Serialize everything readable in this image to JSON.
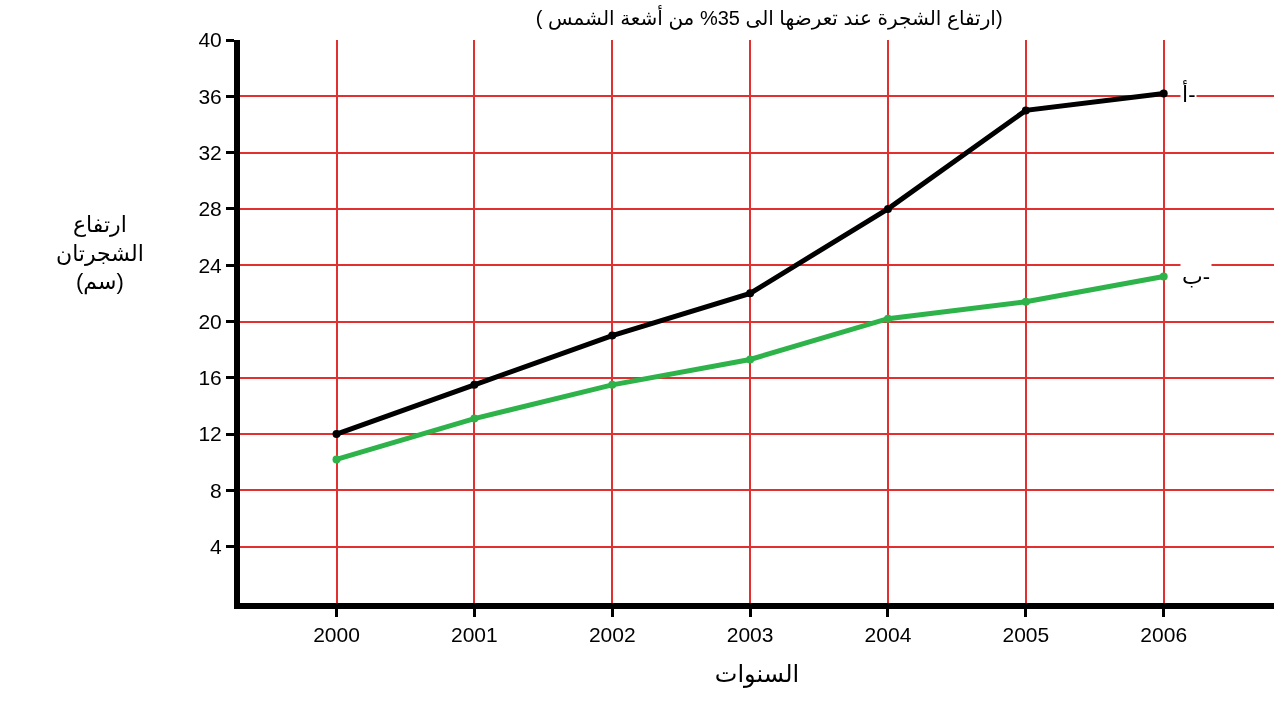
{
  "chart_data": {
    "type": "line",
    "title": "( ارتفاع الشجرة عند تعرضها الى 35% من أشعة الشمس)",
    "xlabel": "السنوات",
    "ylabel": "ارتفاع\nالشجرتان\n(سم)",
    "x": [
      2000,
      2001,
      2002,
      2003,
      2004,
      2005,
      2006
    ],
    "series": [
      {
        "name": "أ-",
        "color": "#000000",
        "values": [
          12,
          15.5,
          19,
          22,
          28,
          35,
          36.2
        ]
      },
      {
        "name": "ب-",
        "color": "#2db34a",
        "values": [
          10.2,
          13.1,
          15.5,
          17.3,
          20.2,
          21.4,
          23.2
        ]
      }
    ],
    "xlim": [
      1999.3,
      2006.8
    ],
    "xticks": [
      2000,
      2001,
      2002,
      2003,
      2004,
      2005,
      2006
    ],
    "ylim": [
      0,
      40
    ],
    "yticks": [
      4,
      8,
      12,
      16,
      20,
      24,
      28,
      32,
      36,
      40
    ],
    "grid": true,
    "legend": false,
    "marker": "circle",
    "line_style": "solid"
  }
}
